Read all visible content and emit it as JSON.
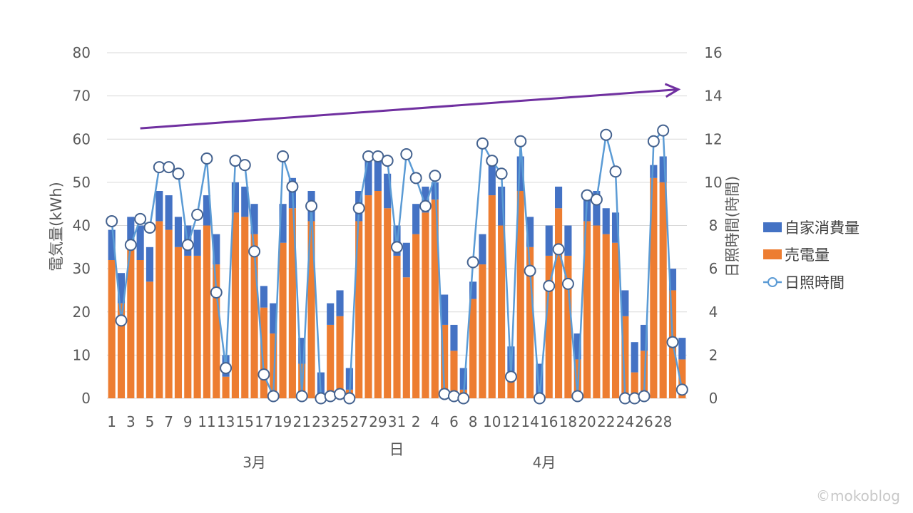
{
  "chart_data": {
    "type": "bar+line",
    "stacked": true,
    "x_title": "日",
    "y_left_title": "電気量(kWh)",
    "y_right_title": "日照時間(時間)",
    "y_left_range": [
      0,
      80
    ],
    "y_left_ticks": [
      0,
      10,
      20,
      30,
      40,
      50,
      60,
      70,
      80
    ],
    "y_right_range": [
      0,
      16
    ],
    "y_right_ticks": [
      0,
      2,
      4,
      6,
      8,
      10,
      12,
      14,
      16
    ],
    "months": [
      "3月",
      "4月"
    ],
    "x_tick_labels": [
      "1",
      "3",
      "5",
      "7",
      "9",
      "11",
      "13",
      "15",
      "17",
      "19",
      "21",
      "23",
      "25",
      "27",
      "29",
      "31",
      "2",
      "4",
      "6",
      "8",
      "10",
      "12",
      "14",
      "16",
      "18",
      "20",
      "22",
      "24",
      "26",
      "28"
    ],
    "days": [
      "1",
      "2",
      "3",
      "4",
      "5",
      "6",
      "7",
      "8",
      "9",
      "10",
      "11",
      "12",
      "13",
      "14",
      "15",
      "16",
      "17",
      "18",
      "19",
      "20",
      "21",
      "22",
      "23",
      "24",
      "25",
      "26",
      "27",
      "28",
      "29",
      "30",
      "31",
      "1",
      "2",
      "3",
      "4",
      "5",
      "6",
      "7",
      "8",
      "9",
      "10",
      "11",
      "12",
      "13",
      "14",
      "15",
      "16",
      "17",
      "18",
      "19",
      "20",
      "21",
      "22",
      "23",
      "24",
      "25",
      "26",
      "27",
      "28",
      "29",
      "30"
    ],
    "series": [
      {
        "name": "自家消費量",
        "type": "bar",
        "color": "#4472c4",
        "values": [
          7,
          7,
          7,
          8,
          8,
          7,
          8,
          7,
          7,
          6,
          7,
          7,
          5,
          7,
          7,
          7,
          5,
          7,
          9,
          7,
          6,
          7,
          5,
          5,
          6,
          5,
          7,
          8,
          7,
          8,
          7,
          8,
          7,
          6,
          4,
          7,
          6,
          5,
          4,
          7,
          9,
          9,
          8,
          8,
          7,
          7,
          7,
          5,
          7,
          6,
          5,
          8,
          6,
          7,
          6,
          7,
          6,
          3,
          6,
          5,
          5
        ]
      },
      {
        "name": "売電量",
        "type": "bar",
        "color": "#ed7d31",
        "values": [
          32,
          22,
          35,
          32,
          27,
          41,
          39,
          35,
          33,
          33,
          40,
          31,
          5,
          43,
          42,
          38,
          21,
          15,
          36,
          44,
          8,
          41,
          1,
          17,
          19,
          2,
          41,
          47,
          48,
          44,
          33,
          28,
          38,
          43,
          46,
          17,
          11,
          2,
          23,
          31,
          47,
          40,
          4,
          48,
          35,
          1,
          33,
          44,
          33,
          9,
          41,
          40,
          38,
          36,
          19,
          6,
          11,
          51,
          50,
          25,
          9
        ]
      },
      {
        "name": "日照時間",
        "type": "line",
        "color": "#5b9bd5",
        "axis": "right",
        "values": [
          8.2,
          3.6,
          7.1,
          8.3,
          7.9,
          10.7,
          10.7,
          10.4,
          7.1,
          8.5,
          11.1,
          4.9,
          1.4,
          11.0,
          10.8,
          6.8,
          1.1,
          0.1,
          11.2,
          9.8,
          0.1,
          8.9,
          0,
          0.1,
          0.2,
          0,
          8.8,
          11.2,
          11.2,
          11.0,
          7.0,
          11.3,
          10.2,
          8.9,
          10.3,
          0.2,
          0.1,
          0,
          6.3,
          11.8,
          11.0,
          10.4,
          1.0,
          11.9,
          5.9,
          0,
          5.2,
          6.9,
          5.3,
          0.1,
          9.4,
          9.2,
          12.2,
          10.5,
          0,
          0,
          0.1,
          11.9,
          12.4,
          2.6,
          0.4
        ]
      }
    ],
    "trend_arrow": {
      "color": "#7030a0",
      "from_day_index": 3,
      "to_day_index": 59,
      "from_value": 62.5,
      "to_value": 71.5
    }
  },
  "copyright": "©mokoblog"
}
